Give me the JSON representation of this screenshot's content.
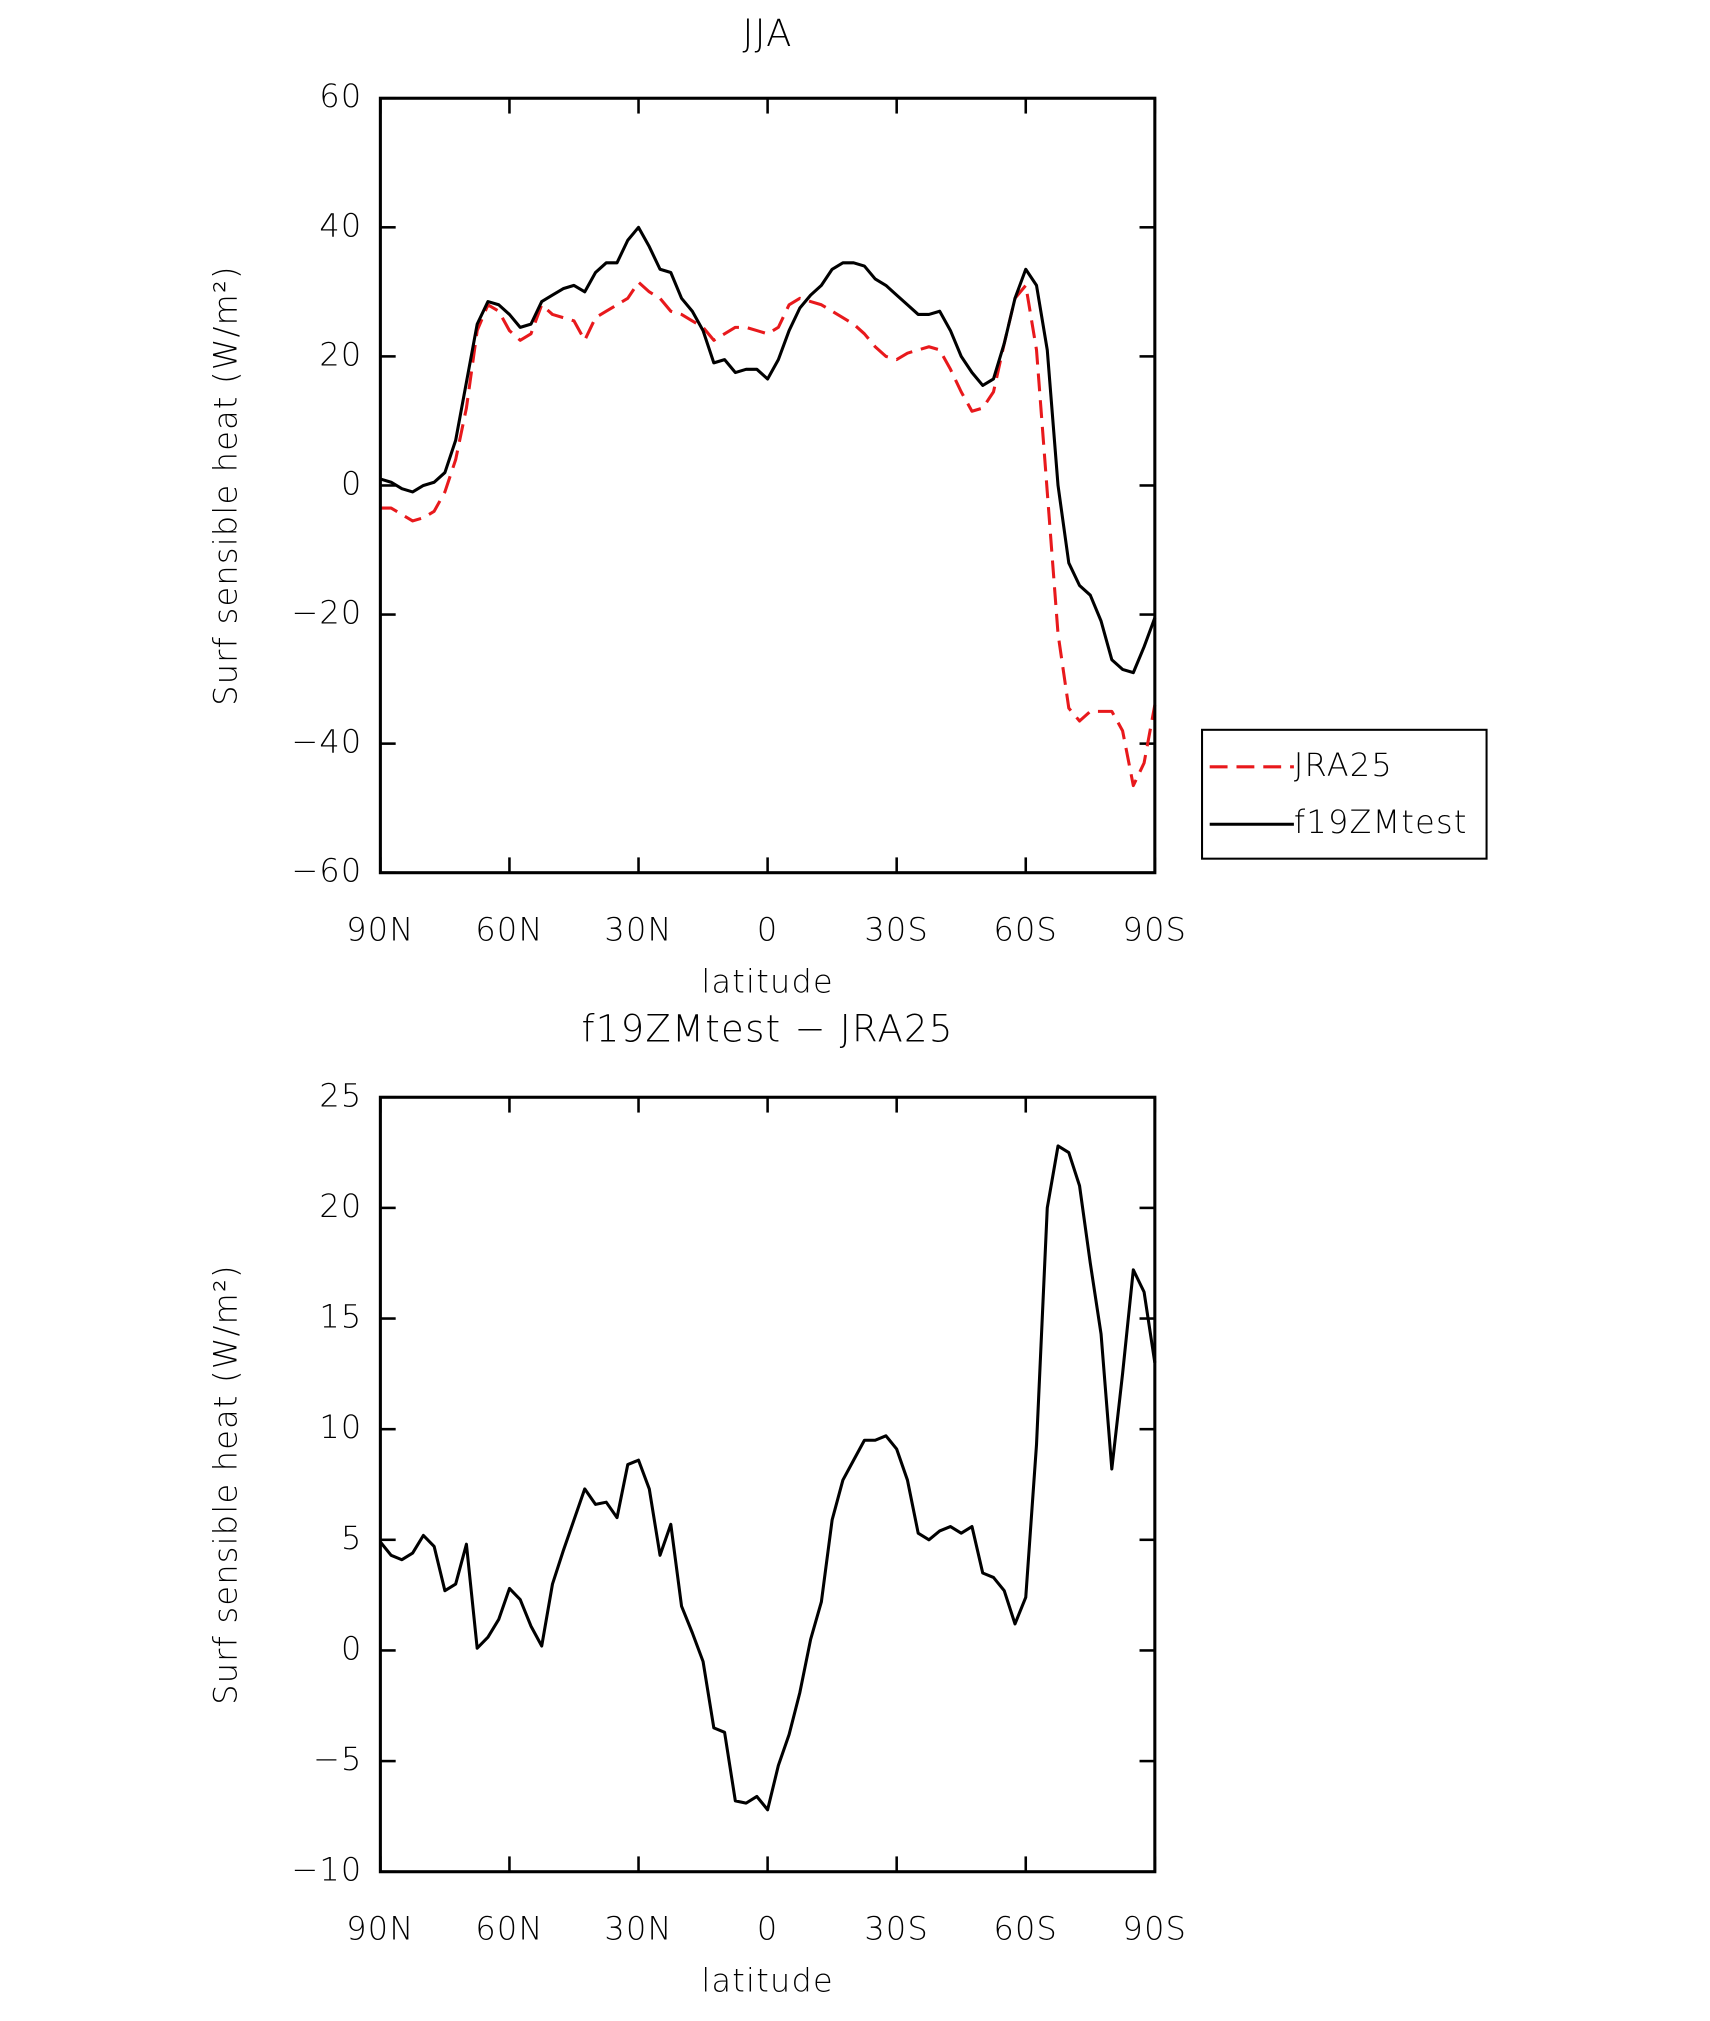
{
  "chart_data": [
    {
      "type": "line",
      "title": "JJA",
      "xlabel": "latitude",
      "ylabel": "Surf sensible heat (W/m²)",
      "x": [
        90,
        87.5,
        85,
        82.5,
        80,
        77.5,
        75,
        72.5,
        70,
        67.5,
        65,
        62.5,
        60,
        57.5,
        55,
        52.5,
        50,
        47.5,
        45,
        42.5,
        40,
        37.5,
        35,
        32.5,
        30,
        27.5,
        25,
        22.5,
        20,
        17.5,
        15,
        12.5,
        10,
        7.5,
        5,
        2.5,
        0,
        -2.5,
        -5,
        -7.5,
        -10,
        -12.5,
        -15,
        -17.5,
        -20,
        -22.5,
        -25,
        -27.5,
        -30,
        -32.5,
        -35,
        -37.5,
        -40,
        -42.5,
        -45,
        -47.5,
        -50,
        -52.5,
        -55,
        -57.5,
        -60,
        -62.5,
        -65,
        -67.5,
        -70,
        -72.5,
        -75,
        -77.5,
        -80,
        -82.5,
        -85,
        -87.5,
        -90
      ],
      "xlim": [
        90,
        -90
      ],
      "xticks": [
        {
          "value": 90,
          "label": "90N"
        },
        {
          "value": 60,
          "label": "60N"
        },
        {
          "value": 30,
          "label": "30N"
        },
        0,
        {
          "value": -30,
          "label": "30S"
        },
        {
          "value": -60,
          "label": "60S"
        },
        {
          "value": -90,
          "label": "90S"
        }
      ],
      "ylim": [
        -60,
        60
      ],
      "yticks": [
        {
          "value": -60,
          "label": "−60"
        },
        {
          "value": -40,
          "label": "−40"
        },
        {
          "value": -20,
          "label": "−20"
        },
        0,
        20,
        40,
        60
      ],
      "legend": "right",
      "series": [
        {
          "name": "JRA25",
          "color": "#e8191c",
          "style": "dashed",
          "values": [
            -3.5,
            -3.5,
            -4.5,
            -5.5,
            -5,
            -4,
            -1,
            4,
            12,
            24,
            28,
            27,
            24,
            22.5,
            23.5,
            28,
            26.5,
            26,
            25.5,
            22.5,
            26,
            27,
            28,
            29,
            31.5,
            30,
            29,
            27,
            26.5,
            25.5,
            24.5,
            22.5,
            23.5,
            24.5,
            24.5,
            24,
            23.5,
            24.5,
            28,
            29,
            28.5,
            28,
            27,
            26,
            25,
            23.5,
            21.5,
            20,
            19.5,
            20.5,
            21,
            21.5,
            21,
            18,
            14.5,
            11.5,
            12,
            14.5,
            22,
            29,
            31,
            21,
            -1,
            -23,
            -34.5,
            -36.5,
            -35,
            -35,
            -35,
            -38,
            -46.5,
            -43,
            -34
          ]
        },
        {
          "name": "f19ZMtest",
          "color": "#000000",
          "style": "solid",
          "values": [
            1,
            0.5,
            -0.5,
            -1,
            0,
            0.5,
            2,
            7,
            16,
            25,
            28.5,
            28,
            26.5,
            24.5,
            25,
            28.5,
            29.5,
            30.5,
            31,
            30,
            33,
            34.5,
            34.5,
            38,
            40,
            37,
            33.5,
            33,
            29,
            27,
            24,
            19,
            19.5,
            17.5,
            18,
            18,
            16.5,
            19.5,
            24,
            27.5,
            29.5,
            31,
            33.5,
            34.5,
            34.5,
            34,
            32,
            31,
            29.5,
            28,
            26.5,
            26.5,
            27,
            24,
            20,
            17.5,
            15.5,
            16.5,
            22,
            29,
            33.5,
            31,
            21,
            0,
            -12,
            -15.5,
            -17,
            -21,
            -27,
            -28.5,
            -29,
            -25,
            -20.5
          ]
        }
      ]
    },
    {
      "type": "line",
      "title": "f19ZMtest − JRA25",
      "xlabel": "latitude",
      "ylabel": "Surf sensible heat (W/m²)",
      "x": [
        90,
        87.5,
        85,
        82.5,
        80,
        77.5,
        75,
        72.5,
        70,
        67.5,
        65,
        62.5,
        60,
        57.5,
        55,
        52.5,
        50,
        47.5,
        45,
        42.5,
        40,
        37.5,
        35,
        32.5,
        30,
        27.5,
        25,
        22.5,
        20,
        17.5,
        15,
        12.5,
        10,
        7.5,
        5,
        2.5,
        0,
        -2.5,
        -5,
        -7.5,
        -10,
        -12.5,
        -15,
        -17.5,
        -20,
        -22.5,
        -25,
        -27.5,
        -30,
        -32.5,
        -35,
        -37.5,
        -40,
        -42.5,
        -45,
        -47.5,
        -50,
        -52.5,
        -55,
        -57.5,
        -60,
        -62.5,
        -65,
        -67.5,
        -70,
        -72.5,
        -75,
        -77.5,
        -80,
        -82.5,
        -85,
        -87.5,
        -90
      ],
      "xlim": [
        90,
        -90
      ],
      "xticks": [
        {
          "value": 90,
          "label": "90N"
        },
        {
          "value": 60,
          "label": "60N"
        },
        {
          "value": 30,
          "label": "30N"
        },
        0,
        {
          "value": -30,
          "label": "30S"
        },
        {
          "value": -60,
          "label": "60S"
        },
        {
          "value": -90,
          "label": "90S"
        }
      ],
      "ylim": [
        -10,
        25
      ],
      "yticks": [
        {
          "value": -10,
          "label": "−10"
        },
        {
          "value": -5,
          "label": "−5"
        },
        0,
        5,
        10,
        15,
        20,
        25
      ],
      "color": "#000000",
      "values": [
        4.9,
        4.3,
        4.1,
        4.4,
        5.2,
        4.7,
        2.7,
        3,
        4.8,
        0.1,
        0.6,
        1.4,
        2.8,
        2.3,
        1.1,
        0.2,
        3,
        4.5,
        5.9,
        7.3,
        6.6,
        6.7,
        6,
        8.4,
        8.6,
        7.3,
        4.3,
        5.7,
        2,
        0.8,
        -0.5,
        -3.5,
        -3.7,
        -6.8,
        -6.9,
        -6.6,
        -7.2,
        -5.2,
        -3.8,
        -1.9,
        0.5,
        2.2,
        5.9,
        7.7,
        8.6,
        9.5,
        9.5,
        9.7,
        9.1,
        7.7,
        5.3,
        5,
        5.4,
        5.6,
        5.3,
        5.6,
        3.5,
        3.3,
        2.7,
        1.2,
        2.4,
        9.3,
        20,
        22.8,
        22.5,
        21,
        17.5,
        14.3,
        8.2,
        12.5,
        17.2,
        16.2,
        13
      ]
    }
  ]
}
